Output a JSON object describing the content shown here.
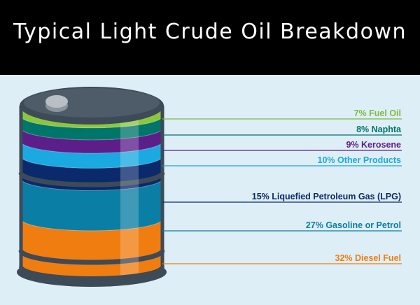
{
  "title": "Typical Light Crude Oil Breakdown",
  "colors": {
    "header_bg": "#000000",
    "panel_bg": "#deeef6",
    "barrel_rim": "#3d4a57"
  },
  "chart_data": {
    "type": "stacked-barrel",
    "title": "Typical Light Crude Oil Breakdown",
    "units": "%",
    "series": [
      {
        "label": "7% Fuel Oil",
        "value": 7,
        "color": "#8cc63f",
        "label_color": "#7cbb44"
      },
      {
        "label": "8% Naphta",
        "value": 8,
        "color": "#00766a",
        "label_color": "#00766a"
      },
      {
        "label": "9% Kerosene",
        "value": 9,
        "color": "#5c1f8a",
        "label_color": "#5c1f8a"
      },
      {
        "label": "10% Other Products",
        "value": 10,
        "color": "#1aa9e1",
        "label_color": "#1aa9e1"
      },
      {
        "label": "15% Liquefied Petroleum Gas (LPG)",
        "value": 15,
        "color": "#0b2a6b",
        "label_color": "#0b2a6b"
      },
      {
        "label": "27% Gasoline or Petrol",
        "value": 27,
        "color": "#0a7ea4",
        "label_color": "#0a7ea4"
      },
      {
        "label": "32% Diesel Fuel",
        "value": 32,
        "color": "#f07d10",
        "label_color": "#f07d10"
      }
    ]
  }
}
